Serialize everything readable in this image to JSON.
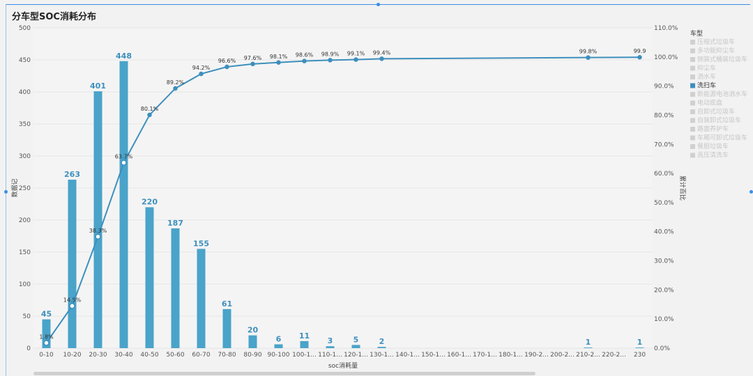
{
  "title": "分车型SOC消耗分布",
  "colors": {
    "bar": "#4aa3c9",
    "line": "#3d8fbd",
    "legend_active": "#3d8fbd",
    "legend_inactive": "#d0d0d0"
  },
  "legend": {
    "title": "车型",
    "items": [
      "压缩式垃圾车",
      "多功能抑尘车",
      "侧装式桶装垃圾车",
      "抑尘车",
      "洒水车",
      "洗扫车",
      "新能源电池洒水车",
      "电动底盘",
      "自卸式垃圾车",
      "自装卸式垃圾车",
      "路面养护车",
      "车厢可卸式垃圾车",
      "餐厨垃圾车",
      "高压清洗车"
    ],
    "active": "洗扫车"
  },
  "chart_data": {
    "type": "bar",
    "title": "分车型SOC消耗分布",
    "xlabel": "soc消耗量",
    "ylabel": "数据记",
    "y2label": "累计百比",
    "ylim": [
      0,
      500
    ],
    "y2lim": [
      0,
      110
    ],
    "yticks": [
      "0",
      "50",
      "100",
      "150",
      "200",
      "250",
      "300",
      "350",
      "400",
      "450",
      "500"
    ],
    "y2ticks": [
      "0.0%",
      "10.0%",
      "20.0%",
      "30.0%",
      "40.0%",
      "50.0%",
      "60.0%",
      "70.0%",
      "80.0%",
      "90.0%",
      "100.0%",
      "110.0%"
    ],
    "categories": [
      "0-10",
      "10-20",
      "20-30",
      "30-40",
      "40-50",
      "50-60",
      "60-70",
      "70-80",
      "80-90",
      "90-100",
      "100-1...",
      "110-1...",
      "120-1...",
      "130-1...",
      "140-1...",
      "150-1...",
      "160-1...",
      "170-1...",
      "180-1...",
      "190-2...",
      "200-2...",
      "210-2...",
      "220-2...",
      "230"
    ],
    "series": [
      {
        "type": "bar",
        "values": [
          45,
          263,
          401,
          448,
          220,
          187,
          155,
          61,
          20,
          6,
          11,
          3,
          5,
          2,
          0,
          0,
          0,
          0,
          0,
          0,
          0,
          1,
          0,
          1
        ],
        "labels": [
          "45",
          "263",
          "401",
          "448",
          "220",
          "187",
          "155",
          "61",
          "20",
          "6",
          "11",
          "3",
          "5",
          "2",
          "",
          "",
          "",
          "",
          "",
          "",
          "",
          "1",
          "",
          "1"
        ]
      },
      {
        "type": "line",
        "axis": "right",
        "values": [
          1.8,
          14.5,
          38.3,
          63.7,
          80.1,
          89.2,
          94.2,
          96.6,
          97.6,
          98.1,
          98.6,
          98.9,
          99.1,
          99.4,
          null,
          null,
          null,
          null,
          null,
          null,
          null,
          99.8,
          null,
          99.9
        ],
        "labels": [
          "1.8%",
          "14.5%",
          "38.3%",
          "63.7%",
          "80.1%",
          "89.2%",
          "94.2%",
          "96.6%",
          "97.6%",
          "98.1%",
          "98.6%",
          "98.9%",
          "99.1%",
          "99.4%",
          "",
          "",
          "",
          "",
          "",
          "",
          "",
          "99.8%",
          "",
          "99.9"
        ]
      }
    ],
    "grid": true,
    "legend_position": "right"
  }
}
